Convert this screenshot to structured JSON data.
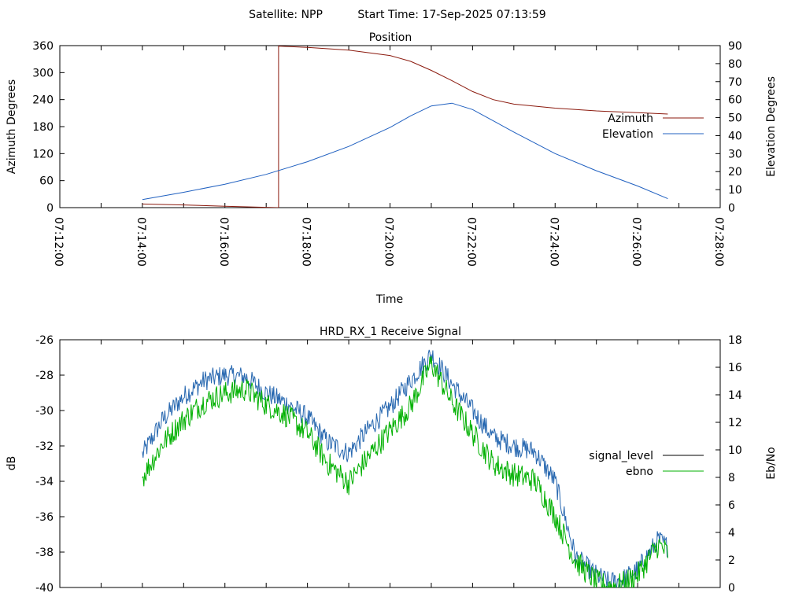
{
  "header": {
    "satellite": "Satellite: NPP",
    "start_time": "Start Time: 17-Sep-2025 07:13:59"
  },
  "chart_data": [
    {
      "type": "line",
      "title": "Position",
      "xlabel": "Time",
      "ylabel": "Azimuth Degrees",
      "y2label": "Elevation Degrees",
      "x_ticks": [
        "07:12:00",
        "07:14:00",
        "07:16:00",
        "07:18:00",
        "07:20:00",
        "07:22:00",
        "07:24:00",
        "07:26:00",
        "07:28:00"
      ],
      "xlim_minutes": [
        0,
        16
      ],
      "ylim": [
        0,
        360
      ],
      "y_ticks": [
        0,
        60,
        120,
        180,
        240,
        300,
        360
      ],
      "y2lim": [
        0,
        90
      ],
      "y2_ticks": [
        0,
        10,
        20,
        30,
        40,
        50,
        60,
        70,
        80,
        90
      ],
      "legend_position": "right",
      "series": [
        {
          "name": "Azimuth",
          "axis": "y",
          "color": "#8b1a0e",
          "x_minutes": [
            2.0,
            3.0,
            4.0,
            4.8,
            5.3,
            5.3,
            6.0,
            7.0,
            8.0,
            8.5,
            9.0,
            9.5,
            10.0,
            10.5,
            11.0,
            12.0,
            13.0,
            14.0,
            14.73
          ],
          "values": [
            8,
            6,
            3,
            1,
            0,
            359,
            356,
            350,
            338,
            325,
            305,
            282,
            258,
            240,
            230,
            221,
            215,
            211,
            208
          ]
        },
        {
          "name": "Elevation",
          "axis": "y2",
          "color": "#2060c0",
          "x_minutes": [
            2.0,
            3.0,
            4.0,
            5.0,
            6.0,
            7.0,
            8.0,
            8.5,
            9.0,
            9.5,
            10.0,
            11.0,
            12.0,
            13.0,
            14.0,
            14.73
          ],
          "values": [
            4.5,
            8.5,
            13.0,
            18.5,
            25.5,
            34.0,
            44.5,
            51.0,
            56.5,
            58.0,
            54.5,
            42.0,
            30.0,
            20.5,
            12.0,
            5.0
          ]
        }
      ]
    },
    {
      "type": "line",
      "title": "HRD_RX_1 Receive Signal",
      "xlabel": "",
      "ylabel": "dB",
      "y2label": "Eb/No",
      "xlim_minutes": [
        0,
        16
      ],
      "ylim": [
        -40,
        -26
      ],
      "y_ticks": [
        -40,
        -38,
        -36,
        -34,
        -32,
        -30,
        -28,
        -26
      ],
      "y2lim": [
        0,
        18
      ],
      "y2_ticks": [
        0,
        2,
        4,
        6,
        8,
        10,
        12,
        14,
        16,
        18
      ],
      "legend_position": "right",
      "series": [
        {
          "name": "signal_level",
          "axis": "y",
          "color": "#2868b0",
          "x_minutes": [
            2.0,
            2.5,
            3.0,
            3.5,
            4.0,
            4.5,
            5.0,
            5.5,
            6.0,
            6.5,
            7.0,
            7.5,
            8.0,
            8.5,
            9.0,
            9.5,
            10.0,
            10.5,
            11.0,
            11.5,
            12.0,
            12.5,
            13.0,
            13.3,
            13.6,
            14.0,
            14.5,
            14.73
          ],
          "values": [
            -32.5,
            -30.5,
            -29.2,
            -28.3,
            -28.0,
            -28.1,
            -29.0,
            -29.6,
            -30.4,
            -31.8,
            -32.4,
            -31.0,
            -29.8,
            -28.3,
            -26.8,
            -28.5,
            -30.0,
            -31.5,
            -32.0,
            -32.3,
            -34.0,
            -38.3,
            -39.3,
            -39.7,
            -39.6,
            -39.0,
            -37.3,
            -37.7
          ]
        },
        {
          "name": "ebno",
          "axis": "y2",
          "color": "#00b000",
          "x_minutes": [
            2.0,
            2.5,
            3.0,
            3.5,
            4.0,
            4.5,
            5.0,
            5.5,
            6.0,
            6.5,
            7.0,
            7.5,
            8.0,
            8.5,
            9.0,
            9.5,
            10.0,
            10.5,
            11.0,
            11.5,
            12.0,
            12.5,
            13.0,
            13.3,
            13.6,
            14.0,
            14.5,
            14.73
          ],
          "values": [
            8.0,
            10.5,
            12.2,
            13.5,
            14.1,
            14.4,
            13.3,
            12.5,
            11.2,
            9.0,
            7.6,
            9.6,
            11.4,
            13.2,
            16.3,
            13.5,
            11.2,
            9.0,
            8.2,
            7.8,
            5.2,
            1.9,
            0.4,
            0.1,
            0.2,
            0.9,
            3.1,
            2.5
          ]
        }
      ]
    }
  ]
}
